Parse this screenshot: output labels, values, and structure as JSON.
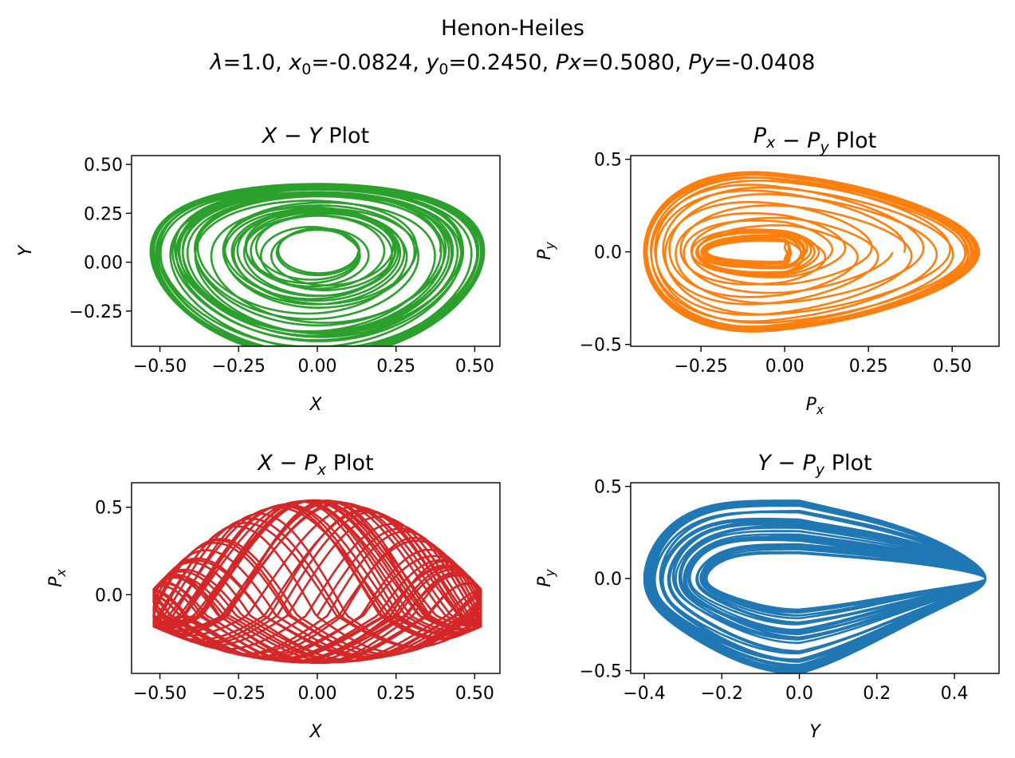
{
  "figure": {
    "title": "Henon-Heiles",
    "subtitle": {
      "lambda_label": "λ",
      "lambda_value": "=1.0, ",
      "x0_label": "x",
      "x0_sub": "0",
      "x0_value": "=-0.0824, ",
      "y0_label": "y",
      "y0_sub": "0",
      "y0_value": "=0.2450, ",
      "px_label": "Px",
      "px_value": "=0.5080, ",
      "py_label": "Py",
      "py_value": "=-0.0408"
    }
  },
  "chart_data": [
    {
      "type": "line",
      "title": {
        "a": "X",
        "sep": " − ",
        "b": "Y",
        "b_sub": "",
        "c_sub": "",
        "suffix": " Plot"
      },
      "xlabel": {
        "main": "X",
        "sub": ""
      },
      "ylabel": {
        "main": "Y",
        "sub": ""
      },
      "color": "#2ca02c",
      "xlim": [
        -0.59,
        0.58
      ],
      "ylim": [
        -0.43,
        0.545
      ],
      "xticks": [
        -0.5,
        -0.25,
        0.0,
        0.25,
        0.5
      ],
      "xtick_labels": [
        "−0.50",
        "−0.25",
        "0.00",
        "0.25",
        "0.50"
      ],
      "yticks": [
        -0.25,
        0.0,
        0.25,
        0.5
      ],
      "ytick_labels": [
        "−0.25",
        "0.00",
        "0.25",
        "0.50"
      ],
      "trajectory": {
        "kind": "xy",
        "cx": 0.0,
        "cy": 0.055,
        "rx_min": 0.12,
        "rx_max": 0.53,
        "ry_min": 0.11,
        "ry_max": 0.445,
        "loops": 42,
        "skew": 0.05
      }
    },
    {
      "type": "line",
      "title": {
        "a": "P",
        "a_sub": "x",
        "sep": " − ",
        "b": "P",
        "b_sub": "y",
        "suffix": " Plot"
      },
      "xlabel": {
        "main": "P",
        "sub": "x"
      },
      "ylabel": {
        "main": "P",
        "sub": "y"
      },
      "color": "#ff7f0e",
      "xlim": [
        -0.46,
        0.64
      ],
      "ylim": [
        -0.51,
        0.52
      ],
      "xticks": [
        -0.25,
        0.0,
        0.25,
        0.5
      ],
      "xtick_labels": [
        "−0.25",
        "0.00",
        "0.25",
        "0.50"
      ],
      "yticks": [
        -0.5,
        0.0,
        0.5
      ],
      "ytick_labels": [
        "−0.5",
        "0.0",
        "0.5"
      ],
      "trajectory": {
        "kind": "pxpy",
        "left": -0.42,
        "right_min": 0.0,
        "right_max": 0.58,
        "ry_max": 0.465,
        "loops": 40
      }
    },
    {
      "type": "line",
      "title": {
        "a": "X",
        "a_sub": "",
        "sep": " − ",
        "b": "P",
        "b_sub": "x",
        "suffix": " Plot"
      },
      "xlabel": {
        "main": "X",
        "sub": ""
      },
      "ylabel": {
        "main": "P",
        "sub": "x"
      },
      "color": "#d62728",
      "xlim": [
        -0.59,
        0.58
      ],
      "ylim": [
        -0.45,
        0.64
      ],
      "xticks": [
        -0.5,
        -0.25,
        0.0,
        0.25,
        0.5
      ],
      "xtick_labels": [
        "−0.50",
        "−0.25",
        "0.00",
        "0.25",
        "0.50"
      ],
      "yticks": [
        0.0,
        0.5
      ],
      "ytick_labels": [
        "0.0",
        "0.5"
      ],
      "trajectory": {
        "kind": "xpx",
        "x_range": [
          -0.52,
          0.53
        ],
        "px_range": [
          -0.4,
          0.58
        ],
        "loops": 60
      }
    },
    {
      "type": "line",
      "title": {
        "a": "Y",
        "a_sub": "",
        "sep": " − ",
        "b": "P",
        "b_sub": "y",
        "suffix": " Plot"
      },
      "xlabel": {
        "main": "Y",
        "sub": ""
      },
      "ylabel": {
        "main": "P",
        "sub": "y"
      },
      "color": "#1f77b4",
      "xlim": [
        -0.435,
        0.515
      ],
      "ylim": [
        -0.515,
        0.52
      ],
      "xticks": [
        -0.4,
        -0.2,
        0.0,
        0.2,
        0.4
      ],
      "xtick_labels": [
        "−0.4",
        "−0.2",
        "0.0",
        "0.2",
        "0.4"
      ],
      "yticks": [
        -0.5,
        0.0,
        0.5
      ],
      "ytick_labels": [
        "−0.5",
        "0.0",
        "0.5"
      ],
      "trajectory": {
        "kind": "ypy",
        "y_range": [
          -0.4,
          0.49
        ],
        "py_max": 0.47,
        "loops": 45
      }
    }
  ]
}
